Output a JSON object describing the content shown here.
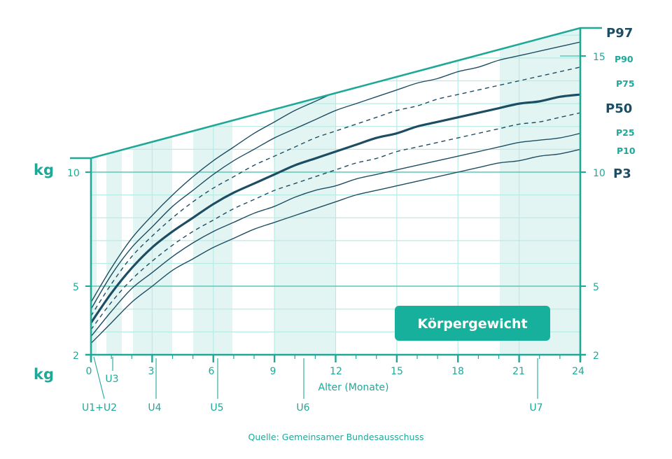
{
  "chart_data": {
    "type": "line",
    "title": "Körpergewicht",
    "xlabel": "Alter (Monate)",
    "ylabel": "kg",
    "xlim": [
      0,
      24
    ],
    "ylim": [
      2,
      16.2
    ],
    "x_ticks": [
      0,
      3,
      6,
      9,
      12,
      15,
      18,
      21,
      24
    ],
    "y_ticks_left": [
      2,
      5,
      10
    ],
    "y_ticks_right": [
      2,
      5,
      10,
      15
    ],
    "grid": true,
    "x": [
      0,
      1,
      2,
      3,
      4,
      5,
      6,
      7,
      8,
      9,
      10,
      11,
      12,
      13,
      14,
      15,
      16,
      17,
      18,
      19,
      20,
      21,
      22,
      23,
      24
    ],
    "series": [
      {
        "name": "P97",
        "style": "solid",
        "values": [
          4.3,
          5.8,
          7.1,
          8.1,
          9.0,
          9.8,
          10.5,
          11.1,
          11.7,
          12.2,
          12.7,
          13.1,
          13.5,
          13.8,
          14.1,
          14.4,
          14.7,
          15.0,
          15.3,
          15.6,
          15.9,
          16.1,
          16.3,
          16.5,
          16.7
        ]
      },
      {
        "name": "P90",
        "style": "solid",
        "values": [
          4.0,
          5.5,
          6.7,
          7.6,
          8.5,
          9.2,
          9.9,
          10.5,
          11.0,
          11.5,
          11.9,
          12.3,
          12.7,
          13.0,
          13.3,
          13.6,
          13.9,
          14.1,
          14.4,
          14.6,
          14.9,
          15.1,
          15.3,
          15.5,
          15.7
        ]
      },
      {
        "name": "P75",
        "style": "dashed",
        "values": [
          3.7,
          5.1,
          6.3,
          7.2,
          8.0,
          8.7,
          9.3,
          9.8,
          10.3,
          10.7,
          11.1,
          11.5,
          11.8,
          12.1,
          12.4,
          12.7,
          12.9,
          13.2,
          13.4,
          13.6,
          13.8,
          14.0,
          14.2,
          14.4,
          14.6
        ]
      },
      {
        "name": "P50",
        "style": "bold",
        "values": [
          3.4,
          4.7,
          5.8,
          6.7,
          7.4,
          8.0,
          8.6,
          9.1,
          9.5,
          9.9,
          10.3,
          10.6,
          10.9,
          11.2,
          11.5,
          11.7,
          12.0,
          12.2,
          12.4,
          12.6,
          12.8,
          13.0,
          13.1,
          13.3,
          13.4
        ]
      },
      {
        "name": "P25",
        "style": "dashed",
        "values": [
          3.1,
          4.3,
          5.3,
          6.1,
          6.8,
          7.4,
          7.9,
          8.4,
          8.8,
          9.2,
          9.5,
          9.8,
          10.1,
          10.4,
          10.6,
          10.9,
          11.1,
          11.3,
          11.5,
          11.7,
          11.9,
          12.1,
          12.2,
          12.4,
          12.6
        ]
      },
      {
        "name": "P10",
        "style": "solid",
        "values": [
          2.8,
          3.9,
          4.9,
          5.6,
          6.3,
          6.9,
          7.4,
          7.8,
          8.2,
          8.5,
          8.9,
          9.2,
          9.4,
          9.7,
          9.9,
          10.1,
          10.3,
          10.5,
          10.7,
          10.9,
          11.1,
          11.3,
          11.4,
          11.5,
          11.7
        ]
      },
      {
        "name": "P3",
        "style": "solid",
        "values": [
          2.5,
          3.4,
          4.3,
          5.0,
          5.7,
          6.2,
          6.7,
          7.1,
          7.5,
          7.8,
          8.1,
          8.4,
          8.7,
          9.0,
          9.2,
          9.4,
          9.6,
          9.8,
          10.0,
          10.2,
          10.4,
          10.5,
          10.7,
          10.8,
          11.0
        ]
      }
    ],
    "legend_position": "right",
    "annotations": [
      {
        "label": "U1+U2",
        "from": 0,
        "to": 0.3
      },
      {
        "label": "U3",
        "from": 0.75,
        "to": 1.5
      },
      {
        "label": "U4",
        "from": 2,
        "to": 4
      },
      {
        "label": "U5",
        "from": 5,
        "to": 7
      },
      {
        "label": "U6",
        "from": 9,
        "to": 12
      },
      {
        "label": "U7",
        "from": 20,
        "to": 24
      }
    ]
  },
  "labels": {
    "unit_top": "kg",
    "unit_bottom": "kg",
    "xlabel": "Alter (Monate)",
    "badge": "Körpergewicht",
    "source": "Quelle: Gemeinsamer Bundesausschuss",
    "left_ticks": {
      "t10": "10",
      "t5": "5",
      "t2": "2"
    },
    "right_ticks": {
      "t15": "15",
      "t10": "10",
      "t5": "5",
      "t2": "2"
    },
    "x_ticks": {
      "t0": "0",
      "t3": "3",
      "t6": "6",
      "t9": "9",
      "t12": "12",
      "t15": "15",
      "t18": "18",
      "t21": "21",
      "t24": "24"
    },
    "percentiles": {
      "p97": "P97",
      "p90": "P90",
      "p75": "P75",
      "p50": "P50",
      "p25": "P25",
      "p10": "P10",
      "p3": "P3"
    },
    "exams": {
      "u1u2": "U1+U2",
      "u3": "U3",
      "u4": "U4",
      "u5": "U5",
      "u6": "U6",
      "u7": "U7"
    }
  },
  "colors": {
    "accent": "#1fa898",
    "curve": "#1d4d63",
    "band": "#e3f5f3",
    "grid": "#b8ebe4",
    "badge": "#17b09c"
  }
}
